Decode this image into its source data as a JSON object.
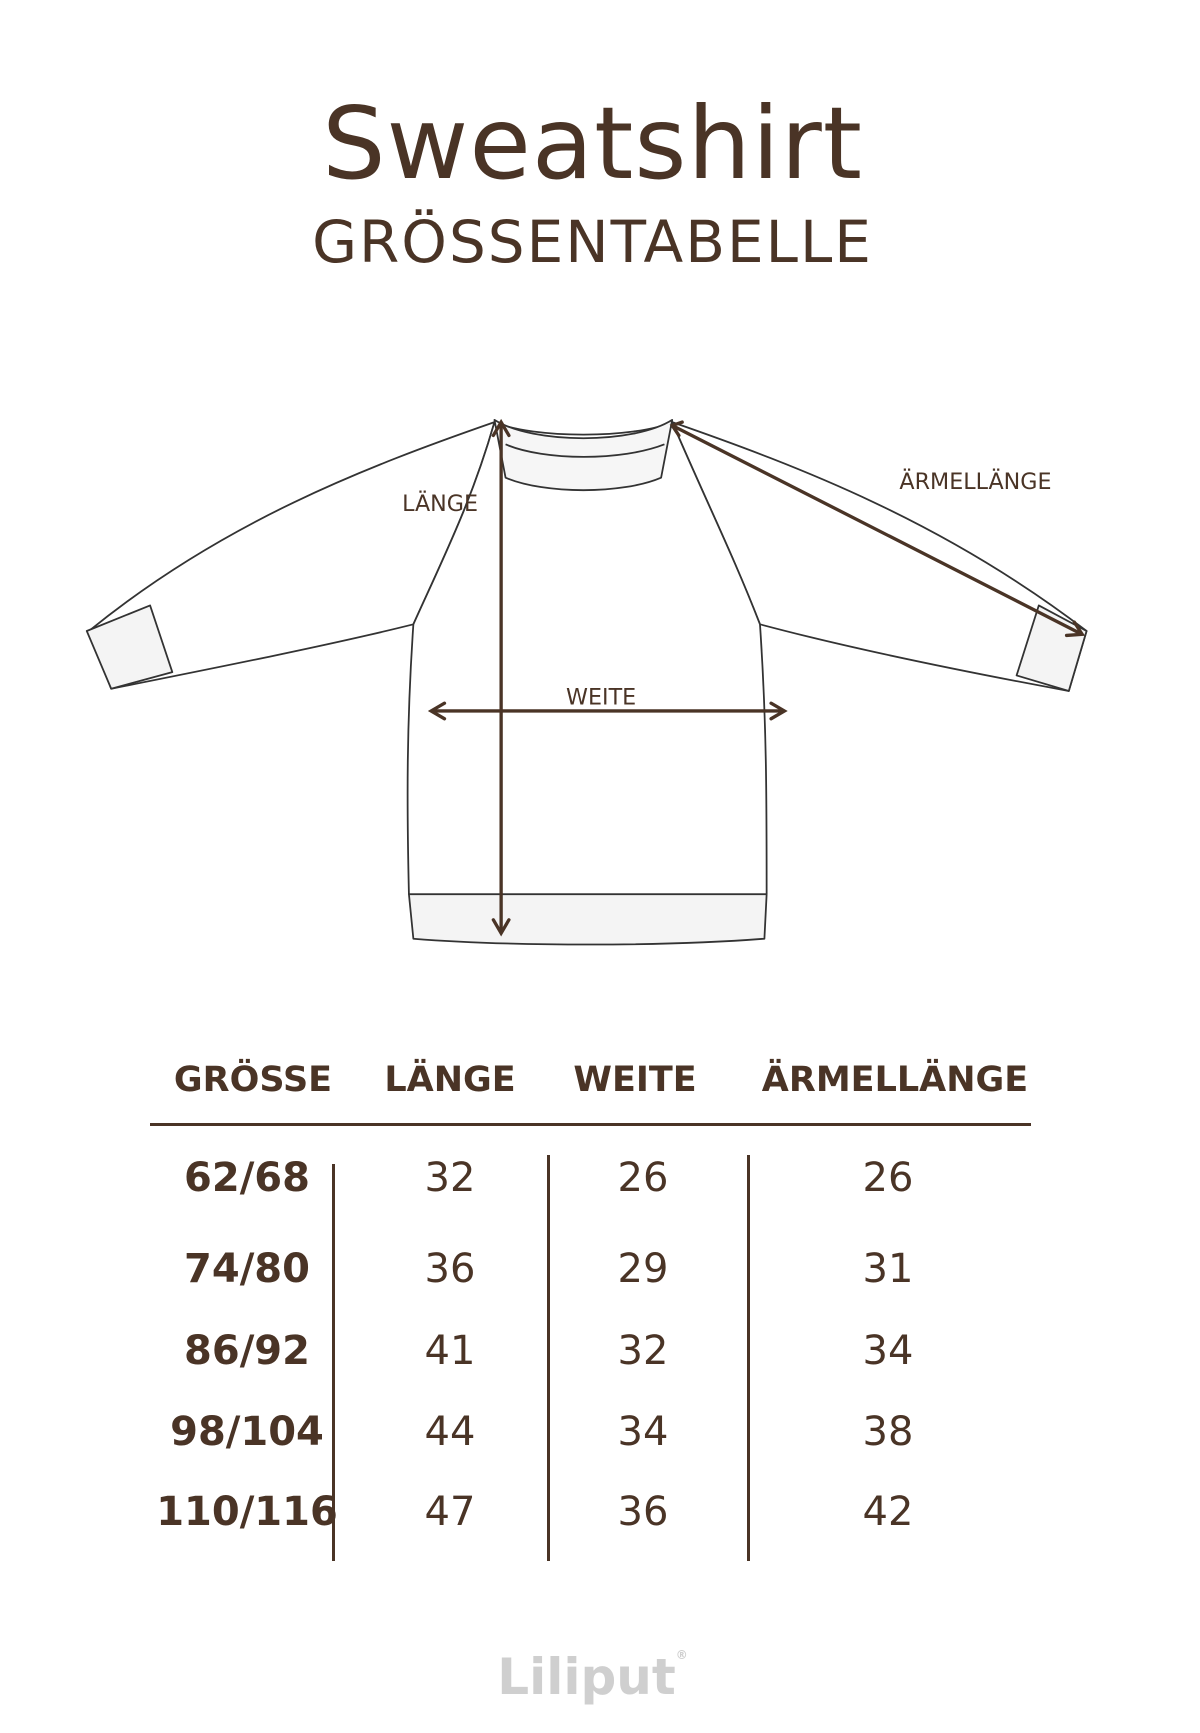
{
  "title": "Sweatshirt",
  "subtitle": "GRÖSSENTABELLE",
  "diagram": {
    "label_length": "LÄNGE",
    "label_width": "WEITE",
    "label_sleeve": "ÄRMELLÄNGE"
  },
  "table": {
    "headers": [
      "GRÖSSE",
      "LÄNGE",
      "WEITE",
      "ÄRMELLÄNGE"
    ],
    "rows": [
      [
        "62/68",
        "32",
        "26",
        "26"
      ],
      [
        "74/80",
        "36",
        "29",
        "31"
      ],
      [
        "86/92",
        "41",
        "32",
        "34"
      ],
      [
        "98/104",
        "44",
        "34",
        "38"
      ],
      [
        "110/116",
        "47",
        "36",
        "42"
      ]
    ]
  },
  "brand": {
    "name": "Liliput",
    "mark": "®"
  },
  "colors": {
    "text": "#4a3426",
    "logo": "#cfcfcf"
  }
}
